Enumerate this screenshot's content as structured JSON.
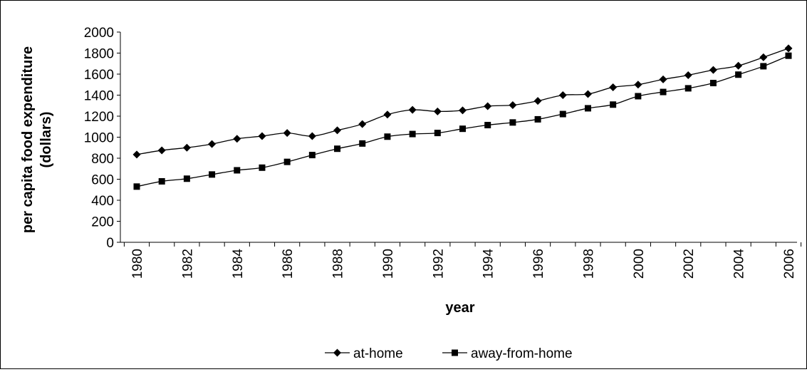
{
  "chart_data": {
    "type": "line",
    "title": "",
    "xlabel": "year",
    "ylabel_lines": [
      "per capita food expenditure",
      "(dollars)"
    ],
    "x": [
      1980,
      1981,
      1982,
      1983,
      1984,
      1985,
      1986,
      1987,
      1988,
      1989,
      1990,
      1991,
      1992,
      1993,
      1994,
      1995,
      1996,
      1997,
      1998,
      1999,
      2000,
      2001,
      2002,
      2003,
      2004,
      2005,
      2006
    ],
    "x_tick_labels": [
      "1980",
      "1982",
      "1984",
      "1986",
      "1988",
      "1990",
      "1992",
      "1994",
      "1996",
      "1998",
      "2000",
      "2002",
      "2004",
      "2006"
    ],
    "ylim": [
      0,
      2000
    ],
    "y_ticks": [
      "0",
      "200",
      "400",
      "600",
      "800",
      "1000",
      "1200",
      "1400",
      "1600",
      "1800",
      "2000"
    ],
    "grid": false,
    "legend_position": "bottom",
    "series": [
      {
        "name": "at-home",
        "marker": "diamond",
        "values": [
          835,
          875,
          900,
          935,
          985,
          1010,
          1040,
          1010,
          1065,
          1125,
          1215,
          1260,
          1245,
          1255,
          1295,
          1305,
          1345,
          1400,
          1410,
          1475,
          1500,
          1550,
          1590,
          1640,
          1680,
          1760,
          1845
        ]
      },
      {
        "name": "away-from-home",
        "marker": "square",
        "values": [
          530,
          580,
          605,
          645,
          685,
          710,
          765,
          830,
          890,
          940,
          1005,
          1030,
          1040,
          1080,
          1115,
          1140,
          1170,
          1220,
          1275,
          1310,
          1390,
          1430,
          1465,
          1515,
          1595,
          1675,
          1775
        ]
      }
    ]
  }
}
